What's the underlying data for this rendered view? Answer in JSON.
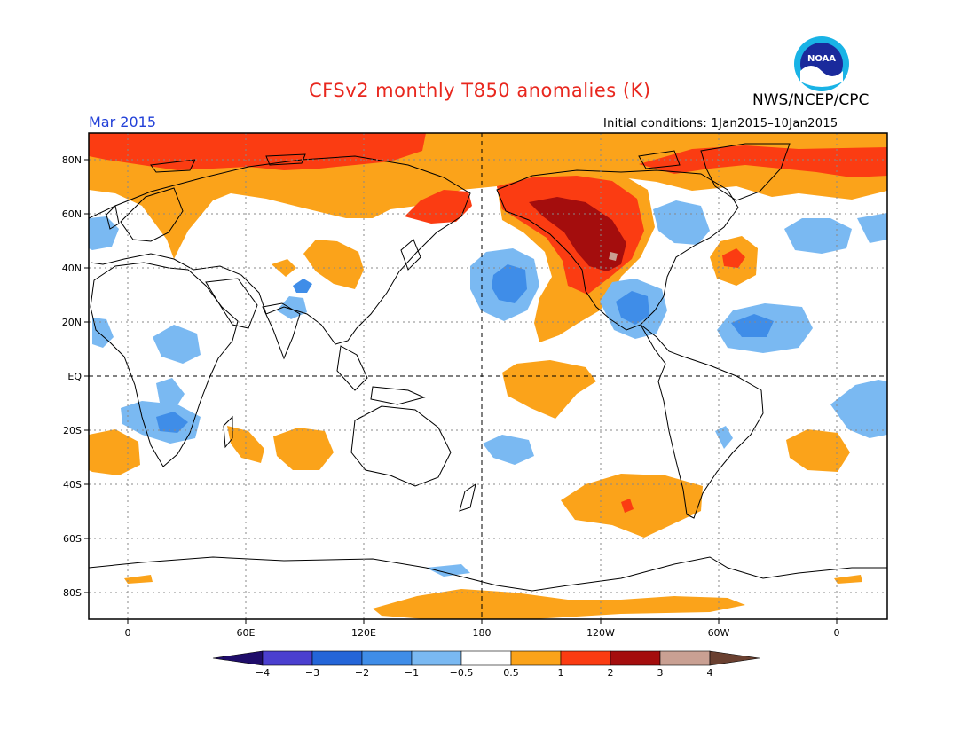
{
  "title": "CFSv2 monthly T850 anomalies (K)",
  "agency": "NWS/NCEP/CPC",
  "logo_text": "NOAA",
  "month": "Mar 2015",
  "initial_conditions": "Initial conditions: 1Jan2015–10Jan2015",
  "lat_labels": [
    "80N",
    "60N",
    "40N",
    "20N",
    "EQ",
    "20S",
    "40S",
    "60S",
    "80S"
  ],
  "lon_labels": [
    "0",
    "60E",
    "120E",
    "180",
    "120W",
    "60W",
    "0"
  ],
  "colorbar": {
    "labels": [
      "−4",
      "−3",
      "−2",
      "−1",
      "−0.5",
      "0.5",
      "1",
      "2",
      "3",
      "4"
    ],
    "colors": [
      "#1f0d6a",
      "#4b3fcf",
      "#2465d8",
      "#3f8de8",
      "#7ab9f2",
      "#ffffff",
      "#fba31a",
      "#fb3c12",
      "#a40d0d",
      "#c9a093",
      "#6a4030"
    ]
  },
  "colors": {
    "neg_light": "#7ab9f2",
    "neg_mid": "#3f8de8",
    "neg_strong": "#2465d8",
    "pos_light": "#fba31a",
    "pos_mid": "#fb3c12",
    "pos_strong": "#a40d0d",
    "pos_extreme": "#c9a093"
  }
}
